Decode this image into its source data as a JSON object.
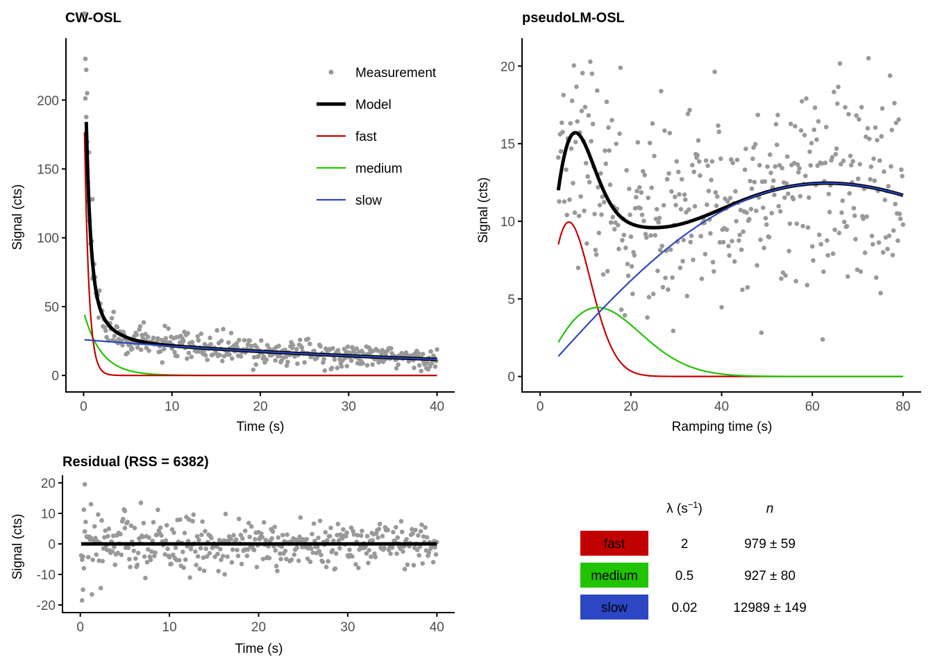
{
  "colors": {
    "measurement": "#999999",
    "model": "#000000",
    "fast": "#c30000",
    "medium": "#20c400",
    "slow": "#2c46c4"
  },
  "chart_data": [
    {
      "id": "cw",
      "type": "scatter+line",
      "title": "CW-OSL",
      "xlabel": "Time (s)",
      "ylabel": "Signal (cts)",
      "xlim": [
        -2,
        42
      ],
      "ylim": [
        -12,
        245
      ],
      "xticks": [
        0,
        10,
        20,
        30,
        40
      ],
      "yticks": [
        0,
        50,
        100,
        150,
        200
      ],
      "grid": false,
      "legend_position": "top-right",
      "legend": [
        {
          "label": "Measurement",
          "kind": "point",
          "color": "#999999"
        },
        {
          "label": "Model",
          "kind": "thick-line",
          "color": "#000000"
        },
        {
          "label": "fast",
          "kind": "line",
          "color": "#c30000"
        },
        {
          "label": "medium",
          "kind": "line",
          "color": "#20c400"
        },
        {
          "label": "slow",
          "kind": "line",
          "color": "#2c46c4"
        }
      ],
      "model": {
        "kind": "cw",
        "t_start": 0.1,
        "t_end": 40,
        "step": 0.1,
        "components": [
          "fast",
          "medium",
          "slow"
        ]
      },
      "measurement": {
        "kind": "cw",
        "t_start": 0.1,
        "t_end": 40,
        "step": 0.1,
        "sample_highlights": [
          [
            0.2,
            230
          ],
          [
            0.3,
            222
          ],
          [
            0.4,
            205
          ],
          [
            0.6,
            162
          ],
          [
            1.0,
            128
          ]
        ]
      }
    },
    {
      "id": "lm",
      "type": "scatter+line",
      "title": "pseudoLM-OSL",
      "xlabel": "Ramping time (s)",
      "ylabel": "Signal (cts)",
      "xlim": [
        -4,
        84
      ],
      "ylim": [
        -1,
        21.8
      ],
      "xticks": [
        0,
        20,
        40,
        60,
        80
      ],
      "yticks": [
        0,
        5,
        10,
        15,
        20
      ],
      "grid": false,
      "model": {
        "kind": "lm",
        "t_start": 4,
        "t_end": 80,
        "components": [
          "fast",
          "medium",
          "slow"
        ]
      },
      "measurement": {
        "kind": "lm",
        "t_start": 4,
        "t_end": 80
      }
    },
    {
      "id": "res",
      "type": "scatter+line",
      "title": "Residual (RSS = 6382)",
      "xlabel": "Time (s)",
      "ylabel": "Signal (cts)",
      "xlim": [
        -2,
        42
      ],
      "ylim": [
        -22.5,
        22.5
      ],
      "xticks": [
        0,
        10,
        20,
        30,
        40
      ],
      "yticks": [
        -20,
        -10,
        0,
        10,
        20
      ],
      "grid": false,
      "zero_line": true,
      "measurement": {
        "kind": "res",
        "t_start": 0.1,
        "t_end": 40,
        "step": 0.1,
        "sample_highlights": [
          [
            0.5,
            19.5
          ],
          [
            0.3,
            -15
          ],
          [
            0.2,
            -18.5
          ],
          [
            0.4,
            -8
          ],
          [
            1.2,
            13
          ],
          [
            5.0,
            10.8
          ]
        ]
      }
    }
  ],
  "components": [
    {
      "name": "fast",
      "lambda": 2,
      "n": 979,
      "lambda_text": "2",
      "n_text": "979 ± 59",
      "color": "#c30000"
    },
    {
      "name": "medium",
      "lambda": 0.5,
      "n": 927,
      "lambda_text": "0.5",
      "n_text": "927 ± 80",
      "color": "#20c400"
    },
    {
      "name": "slow",
      "lambda": 0.02,
      "n": 12989,
      "lambda_text": "0.02",
      "n_text": "12989 ± 149",
      "color": "#2c46c4"
    }
  ],
  "table": {
    "header_lambda": "λ (s",
    "header_lambda_exp": "−1",
    "header_lambda_close": ")",
    "header_n": "n"
  }
}
